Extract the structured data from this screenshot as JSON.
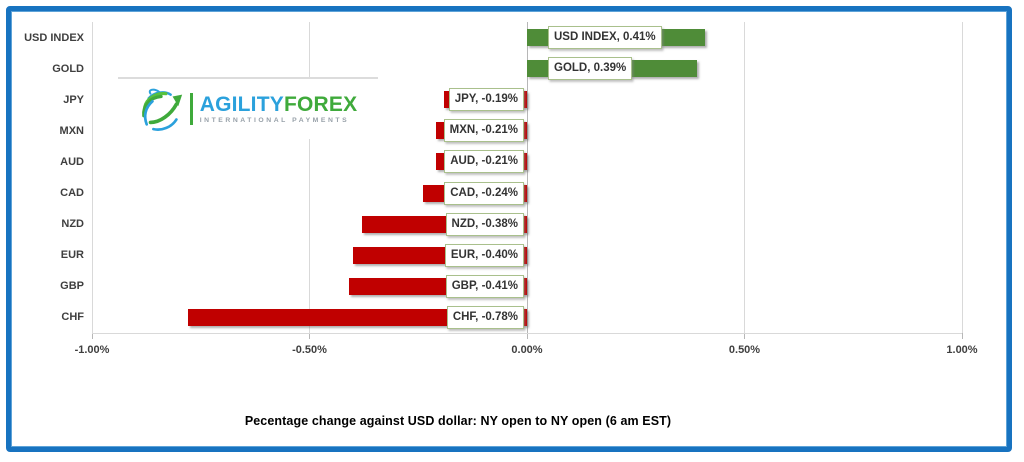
{
  "chart_data": {
    "type": "bar",
    "orientation": "horizontal",
    "categories": [
      "USD INDEX",
      "GOLD",
      "JPY",
      "MXN",
      "AUD",
      "CAD",
      "NZD",
      "EUR",
      "GBP",
      "CHF"
    ],
    "values": [
      0.41,
      0.39,
      -0.19,
      -0.21,
      -0.21,
      -0.24,
      -0.38,
      -0.4,
      -0.41,
      -0.78
    ],
    "data_labels": [
      "USD INDEX, 0.41%",
      "GOLD, 0.39%",
      "JPY, -0.19%",
      "MXN, -0.21%",
      "AUD, -0.21%",
      "CAD, -0.24%",
      "NZD, -0.38%",
      "EUR, -0.40%",
      "GBP, -0.41%",
      "CHF, -0.78%"
    ],
    "x_ticks": [
      {
        "label": "-1.00%",
        "value": -1
      },
      {
        "label": "-0.50%",
        "value": -0.5
      },
      {
        "label": "0.00%",
        "value": 0
      },
      {
        "label": "0.50%",
        "value": 0.5
      },
      {
        "label": "1.00%",
        "value": 1
      }
    ],
    "xlim": [
      -1,
      1
    ],
    "grid": true,
    "legend": "none",
    "axis_title": "Pecentage change against USD dollar:  NY open to NY open  (6 am EST)",
    "colors": {
      "positive_bar": "#4f8c38",
      "negative_bar": "#c00000",
      "label_box_border": "#a9c08c",
      "gridline": "#d9d9d9",
      "zero_axis": "#b7b7b7",
      "text": "#3f3f3f",
      "frame": "#1873c0"
    }
  },
  "logo": {
    "brand_primary": "AGILITY",
    "brand_secondary": "FOREX",
    "tagline": "INTERNATIONAL PAYMENTS",
    "brand_primary_color": "#2ba1dc",
    "brand_secondary_color": "#3faa3b"
  }
}
